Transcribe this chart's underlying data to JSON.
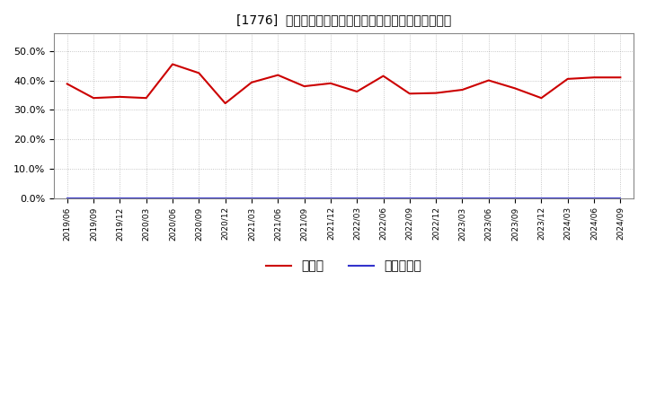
{
  "title": "[1776]  現預金、有利子負債の総資産に対する比率の推移",
  "x_labels": [
    "2019/06",
    "2019/09",
    "2019/12",
    "2020/03",
    "2020/06",
    "2020/09",
    "2020/12",
    "2021/03",
    "2021/06",
    "2021/09",
    "2021/12",
    "2022/03",
    "2022/06",
    "2022/09",
    "2022/12",
    "2023/03",
    "2023/06",
    "2023/09",
    "2023/12",
    "2024/03",
    "2024/06",
    "2024/09"
  ],
  "cash_values": [
    0.388,
    0.34,
    0.344,
    0.34,
    0.455,
    0.425,
    0.322,
    0.393,
    0.418,
    0.38,
    0.39,
    0.362,
    0.415,
    0.355,
    0.357,
    0.368,
    0.4,
    0.373,
    0.34,
    0.405,
    0.41,
    0.41
  ],
  "debt_values": [
    0.0,
    0.0,
    0.0,
    0.0,
    0.0,
    0.0,
    0.0,
    0.0,
    0.0,
    0.0,
    0.0,
    0.0,
    0.0,
    0.0,
    0.0,
    0.0,
    0.0,
    0.0,
    0.0,
    0.0,
    0.0,
    0.0
  ],
  "cash_color": "#cc0000",
  "debt_color": "#3333cc",
  "background_color": "#ffffff",
  "plot_bg_color": "#ffffff",
  "grid_color": "#999999",
  "ylim": [
    0.0,
    0.56
  ],
  "yticks": [
    0.0,
    0.1,
    0.2,
    0.3,
    0.4,
    0.5
  ],
  "legend_cash": "現預金",
  "legend_debt": "有利子負債",
  "title_fontsize": 11
}
